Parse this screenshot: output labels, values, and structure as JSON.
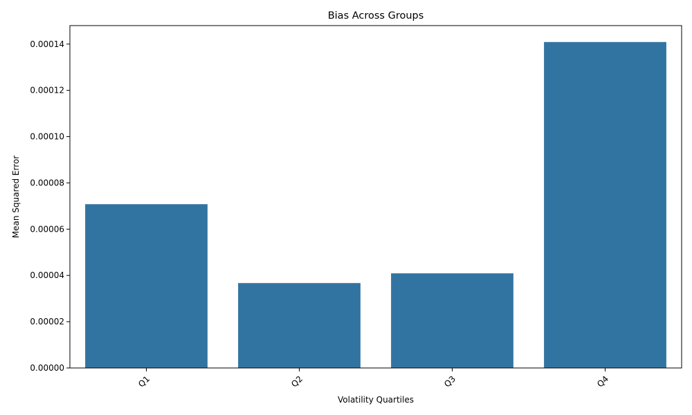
{
  "chart_data": {
    "type": "bar",
    "title": "Bias Across Groups",
    "xlabel": "Volatility Quartiles",
    "ylabel": "Mean Squared Error",
    "categories": [
      "Q1",
      "Q2",
      "Q3",
      "Q4"
    ],
    "values": [
      7.08e-05,
      3.67e-05,
      4.09e-05,
      0.0001409
    ],
    "ylim": [
      0,
      0.000148
    ],
    "yticks": [
      0,
      2e-05,
      4e-05,
      6e-05,
      8e-05,
      0.0001,
      0.00012,
      0.00014
    ],
    "ytick_labels": [
      "0.00000",
      "0.00002",
      "0.00004",
      "0.00006",
      "0.00008",
      "0.00010",
      "0.00012",
      "0.00014"
    ],
    "xtick_rotation_deg": 45,
    "grid": false,
    "legend": "none",
    "bar_color": "#3274a1"
  }
}
